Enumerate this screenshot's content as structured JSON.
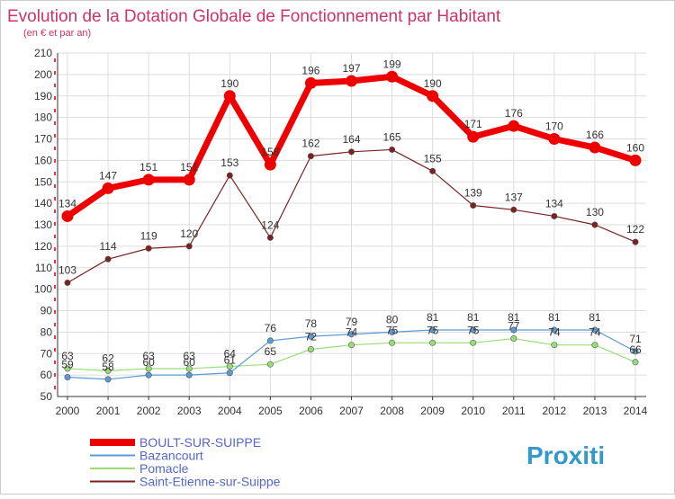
{
  "chart_data": {
    "type": "line",
    "title": "Evolution de la Dotation Globale de Fonctionnement par Habitant",
    "subtitle": "(en € et par an)",
    "xlabel": "",
    "ylabel": "",
    "ylim": [
      50,
      210
    ],
    "y_ticks": [
      50,
      60,
      70,
      80,
      90,
      100,
      110,
      120,
      130,
      140,
      150,
      160,
      170,
      180,
      190,
      200,
      210
    ],
    "categories": [
      "2000",
      "2001",
      "2002",
      "2003",
      "2004",
      "2005",
      "2006",
      "2007",
      "2008",
      "2009",
      "2010",
      "2011",
      "2012",
      "2013",
      "2014"
    ],
    "grid": true,
    "legend_position": "bottom-left",
    "series": [
      {
        "name": "BOULT-SUR-SUIPPE",
        "color": "#ee0000",
        "values": [
          134,
          147,
          151,
          151,
          190,
          158,
          196,
          197,
          199,
          190,
          171,
          176,
          170,
          166,
          160
        ]
      },
      {
        "name": "Bazancourt",
        "color": "#5b9bd5",
        "values": [
          59,
          58,
          60,
          60,
          61,
          76,
          78,
          79,
          80,
          81,
          81,
          81,
          81,
          81,
          71
        ]
      },
      {
        "name": "Pomacle",
        "color": "#99dd77",
        "values": [
          63,
          62,
          63,
          63,
          64,
          65,
          72,
          74,
          75,
          75,
          75,
          77,
          74,
          74,
          66
        ]
      },
      {
        "name": "Saint-Etienne-sur-Suippe",
        "color": "#7a2222",
        "values": [
          103,
          114,
          119,
          120,
          153,
          124,
          162,
          164,
          165,
          155,
          139,
          137,
          134,
          130,
          122
        ]
      }
    ]
  },
  "brand": {
    "logo_text": "Proxiti"
  }
}
